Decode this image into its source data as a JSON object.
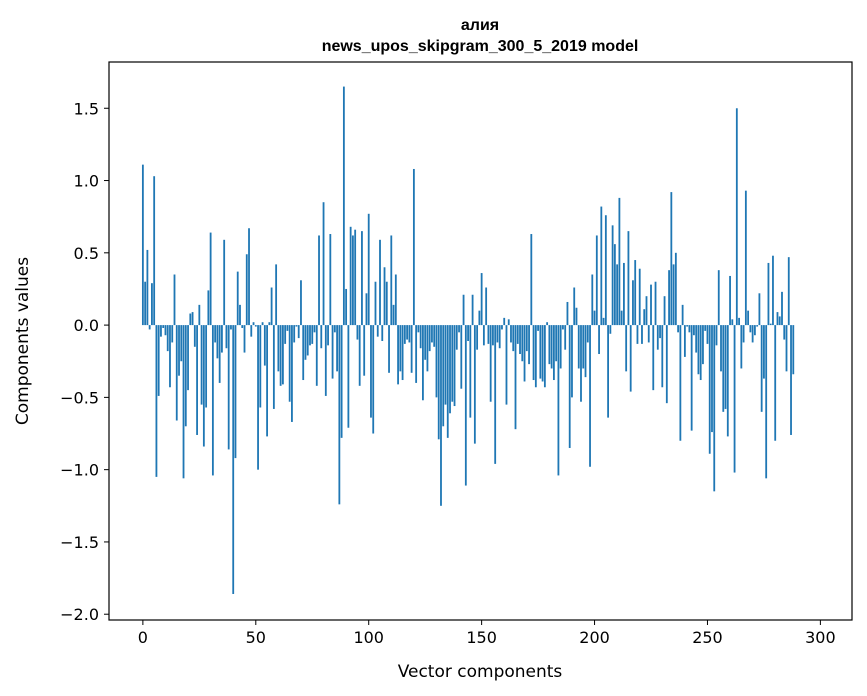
{
  "chart_data": {
    "type": "bar",
    "title_line1": "алия",
    "title_line2": "news_upos_skipgram_300_5_2019 model",
    "xlabel": "Vector components",
    "ylabel": "Components values",
    "xlim": [
      -15,
      314
    ],
    "ylim": [
      -2.04,
      1.82
    ],
    "xticks": [
      0,
      50,
      100,
      150,
      200,
      250,
      300
    ],
    "xtick_labels": [
      "0",
      "50",
      "100",
      "150",
      "200",
      "250",
      "300"
    ],
    "yticks": [
      -2.0,
      -1.5,
      -1.0,
      -0.5,
      0.0,
      0.5,
      1.0,
      1.5
    ],
    "ytick_labels": [
      "−2.0",
      "−1.5",
      "−1.0",
      "−0.5",
      "0.0",
      "0.5",
      "1.0",
      "1.5"
    ],
    "bar_color": "#1f77b4",
    "values": [
      1.11,
      0.3,
      0.52,
      -0.03,
      0.29,
      1.03,
      -1.05,
      -0.49,
      -0.08,
      -0.02,
      -0.07,
      -0.18,
      -0.43,
      -0.12,
      0.35,
      -0.66,
      -0.35,
      -0.25,
      -1.06,
      -0.7,
      -0.45,
      0.08,
      0.09,
      -0.15,
      -0.76,
      0.14,
      -0.55,
      -0.84,
      -0.57,
      0.24,
      0.64,
      -1.04,
      -0.12,
      -0.23,
      -0.4,
      -0.19,
      0.59,
      -0.16,
      -0.86,
      -0.03,
      -1.86,
      -0.92,
      0.37,
      0.14,
      -0.02,
      -0.19,
      0.49,
      0.67,
      -0.08,
      0.02,
      -0.01,
      -1.0,
      -0.57,
      0.02,
      -0.28,
      -0.77,
      0.02,
      0.26,
      -0.58,
      0.42,
      -0.32,
      -0.42,
      -0.41,
      -0.13,
      -0.04,
      -0.53,
      -0.67,
      -0.12,
      -0.01,
      -0.09,
      0.31,
      -0.38,
      -0.24,
      -0.21,
      -0.14,
      -0.13,
      -0.05,
      -0.42,
      0.62,
      -0.16,
      0.85,
      -0.49,
      -0.14,
      0.63,
      -0.37,
      -0.05,
      -0.32,
      -1.24,
      -0.78,
      1.65,
      0.25,
      -0.71,
      0.68,
      0.62,
      0.66,
      -0.1,
      -0.42,
      0.65,
      -0.35,
      0.22,
      0.77,
      -0.64,
      -0.75,
      0.3,
      -0.08,
      0.59,
      -0.11,
      0.4,
      0.3,
      -0.33,
      0.62,
      0.14,
      0.35,
      -0.41,
      -0.32,
      -0.38,
      -0.13,
      -0.1,
      -0.12,
      -0.33,
      1.08,
      -0.4,
      -0.05,
      -0.16,
      -0.52,
      -0.24,
      -0.32,
      -0.18,
      -0.12,
      -0.15,
      -0.5,
      -0.79,
      -1.25,
      -0.7,
      -0.55,
      -0.78,
      -0.61,
      -0.53,
      -0.56,
      -0.17,
      -0.05,
      -0.44,
      0.21,
      -1.11,
      -0.11,
      -0.64,
      0.21,
      -0.82,
      -0.17,
      0.1,
      0.36,
      -0.14,
      0.26,
      -0.13,
      -0.53,
      -0.14,
      -0.96,
      -0.12,
      -0.16,
      -0.03,
      0.05,
      -0.55,
      0.04,
      -0.12,
      -0.18,
      -0.72,
      -0.13,
      -0.2,
      -0.25,
      -0.39,
      -0.18,
      -0.27,
      0.63,
      -0.38,
      -0.43,
      -0.04,
      -0.37,
      -0.39,
      -0.43,
      0.02,
      -0.27,
      -0.3,
      -0.38,
      -0.25,
      -1.04,
      -0.3,
      -0.03,
      -0.17,
      0.16,
      -0.85,
      -0.5,
      0.26,
      0.12,
      -0.3,
      -0.53,
      -0.3,
      -0.36,
      -0.12,
      -0.98,
      0.35,
      0.1,
      0.62,
      -0.2,
      0.82,
      0.05,
      0.76,
      -0.64,
      -0.06,
      0.69,
      0.56,
      0.42,
      0.88,
      0.1,
      0.43,
      -0.32,
      0.65,
      -0.46,
      0.31,
      0.45,
      -0.13,
      0.39,
      -0.13,
      0.11,
      0.2,
      -0.12,
      0.28,
      -0.45,
      0.3,
      -0.17,
      -0.09,
      -0.43,
      0.2,
      -0.54,
      0.38,
      0.92,
      0.42,
      0.5,
      -0.05,
      -0.8,
      0.14,
      -0.22,
      -0.01,
      -0.05,
      -0.73,
      -0.07,
      -0.19,
      -0.34,
      -0.38,
      -0.27,
      -0.04,
      -0.13,
      -0.89,
      -0.74,
      -1.15,
      -0.14,
      0.38,
      -0.32,
      -0.6,
      -0.58,
      -0.77,
      0.34,
      0.04,
      -1.02,
      1.5,
      0.05,
      -0.3,
      -0.12,
      0.93,
      0.1,
      -0.05,
      -0.12,
      -0.07,
      -0.01,
      0.22,
      -0.6,
      -0.37,
      -1.06,
      0.43,
      0.01,
      0.48,
      -0.8,
      0.09,
      0.06,
      0.23,
      -0.1,
      -0.32,
      0.47,
      -0.76,
      -0.34
    ]
  }
}
